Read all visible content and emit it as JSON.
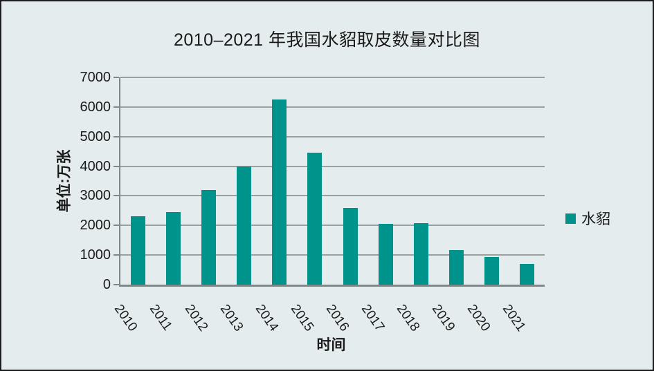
{
  "frame": {
    "background_color": "#e5eced",
    "border_color": "#1c1c1c"
  },
  "chart_data": {
    "type": "bar",
    "title": "2010–2021 年我国水貂取皮数量对比图",
    "xlabel": "时间",
    "ylabel": "单位:万张",
    "categories": [
      "2010",
      "2011",
      "2012",
      "2013",
      "2014",
      "2015",
      "2016",
      "2017",
      "2018",
      "2019",
      "2020",
      "2021"
    ],
    "series": [
      {
        "name": "水貂",
        "values": [
          2300,
          2450,
          3200,
          4000,
          6250,
          4450,
          2600,
          2050,
          2080,
          1170,
          930,
          690
        ]
      }
    ],
    "ylim": [
      0,
      7000
    ],
    "ytick_step": 1000,
    "ytick_labels": [
      "0",
      "1000",
      "2000",
      "3000",
      "4000",
      "5000",
      "6000",
      "7000"
    ],
    "grid": true,
    "legend_position": "right",
    "bar_color": "#00938c",
    "gridline_color": "#9aa0a0",
    "axis_color": "#7e8889"
  }
}
